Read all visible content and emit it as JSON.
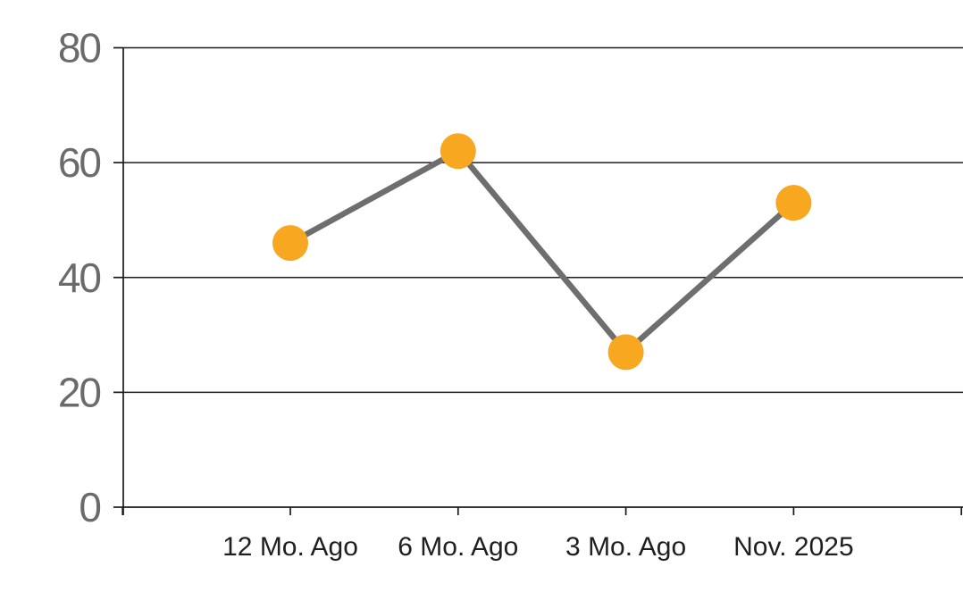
{
  "chart_data": {
    "type": "line",
    "title": "",
    "categories": [
      "12 Mo. Ago",
      "6 Mo. Ago",
      "3 Mo. Ago",
      "Nov. 2025"
    ],
    "series": [
      {
        "name": "values",
        "values": [
          46,
          62,
          27,
          53
        ]
      }
    ],
    "xlabel": "",
    "ylabel": "",
    "ylim": [
      0,
      80
    ],
    "yticks": [
      0,
      20,
      40,
      60,
      80
    ],
    "y_tick_labels": [
      "0",
      "20",
      "40",
      "60",
      "80"
    ],
    "grid": "horizontal",
    "legend_position": "none",
    "marker_style": "filled-circle",
    "colors": {
      "marker_fill": "#F8A820",
      "line_stroke": "#6E6E6E",
      "gridline": "#1E1E1E",
      "axis": "#1A1A1A",
      "y_tick_label": "#6B6B6B",
      "x_tick_label": "#1F1F1F",
      "background": "#FFFFFF"
    }
  }
}
